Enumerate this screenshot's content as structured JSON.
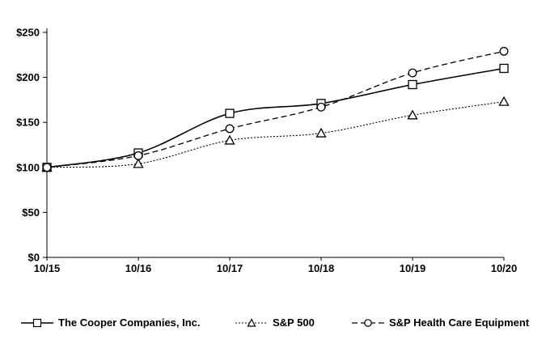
{
  "chart_data": {
    "type": "line",
    "title": "",
    "categories": [
      "10/15",
      "10/16",
      "10/17",
      "10/18",
      "10/19",
      "10/20"
    ],
    "series": [
      {
        "name": "The Cooper Companies, Inc.",
        "marker": "square",
        "line": "solid",
        "values": [
          100,
          116,
          160,
          171,
          192,
          210
        ]
      },
      {
        "name": "S&P 500",
        "marker": "triangle",
        "line": "dotted",
        "values": [
          100,
          104,
          130,
          138,
          158,
          173
        ]
      },
      {
        "name": "S&P Health Care Equipment",
        "marker": "circle",
        "line": "dashed",
        "values": [
          100,
          113,
          143,
          167,
          205,
          229
        ]
      }
    ],
    "y_axis": {
      "tick_labels": [
        "$0",
        "$50",
        "$100",
        "$150",
        "$200",
        "$250"
      ],
      "tick_values": [
        0,
        50,
        100,
        150,
        200,
        250
      ]
    },
    "ylim": [
      0,
      250
    ],
    "grid": false,
    "legend_position": "bottom",
    "line_color": "#000000",
    "background": "#ffffff"
  },
  "legend": {
    "items": [
      {
        "label": "The Cooper Companies, Inc."
      },
      {
        "label": "S&P 500"
      },
      {
        "label": "S&P Health Care Equipment"
      }
    ]
  }
}
